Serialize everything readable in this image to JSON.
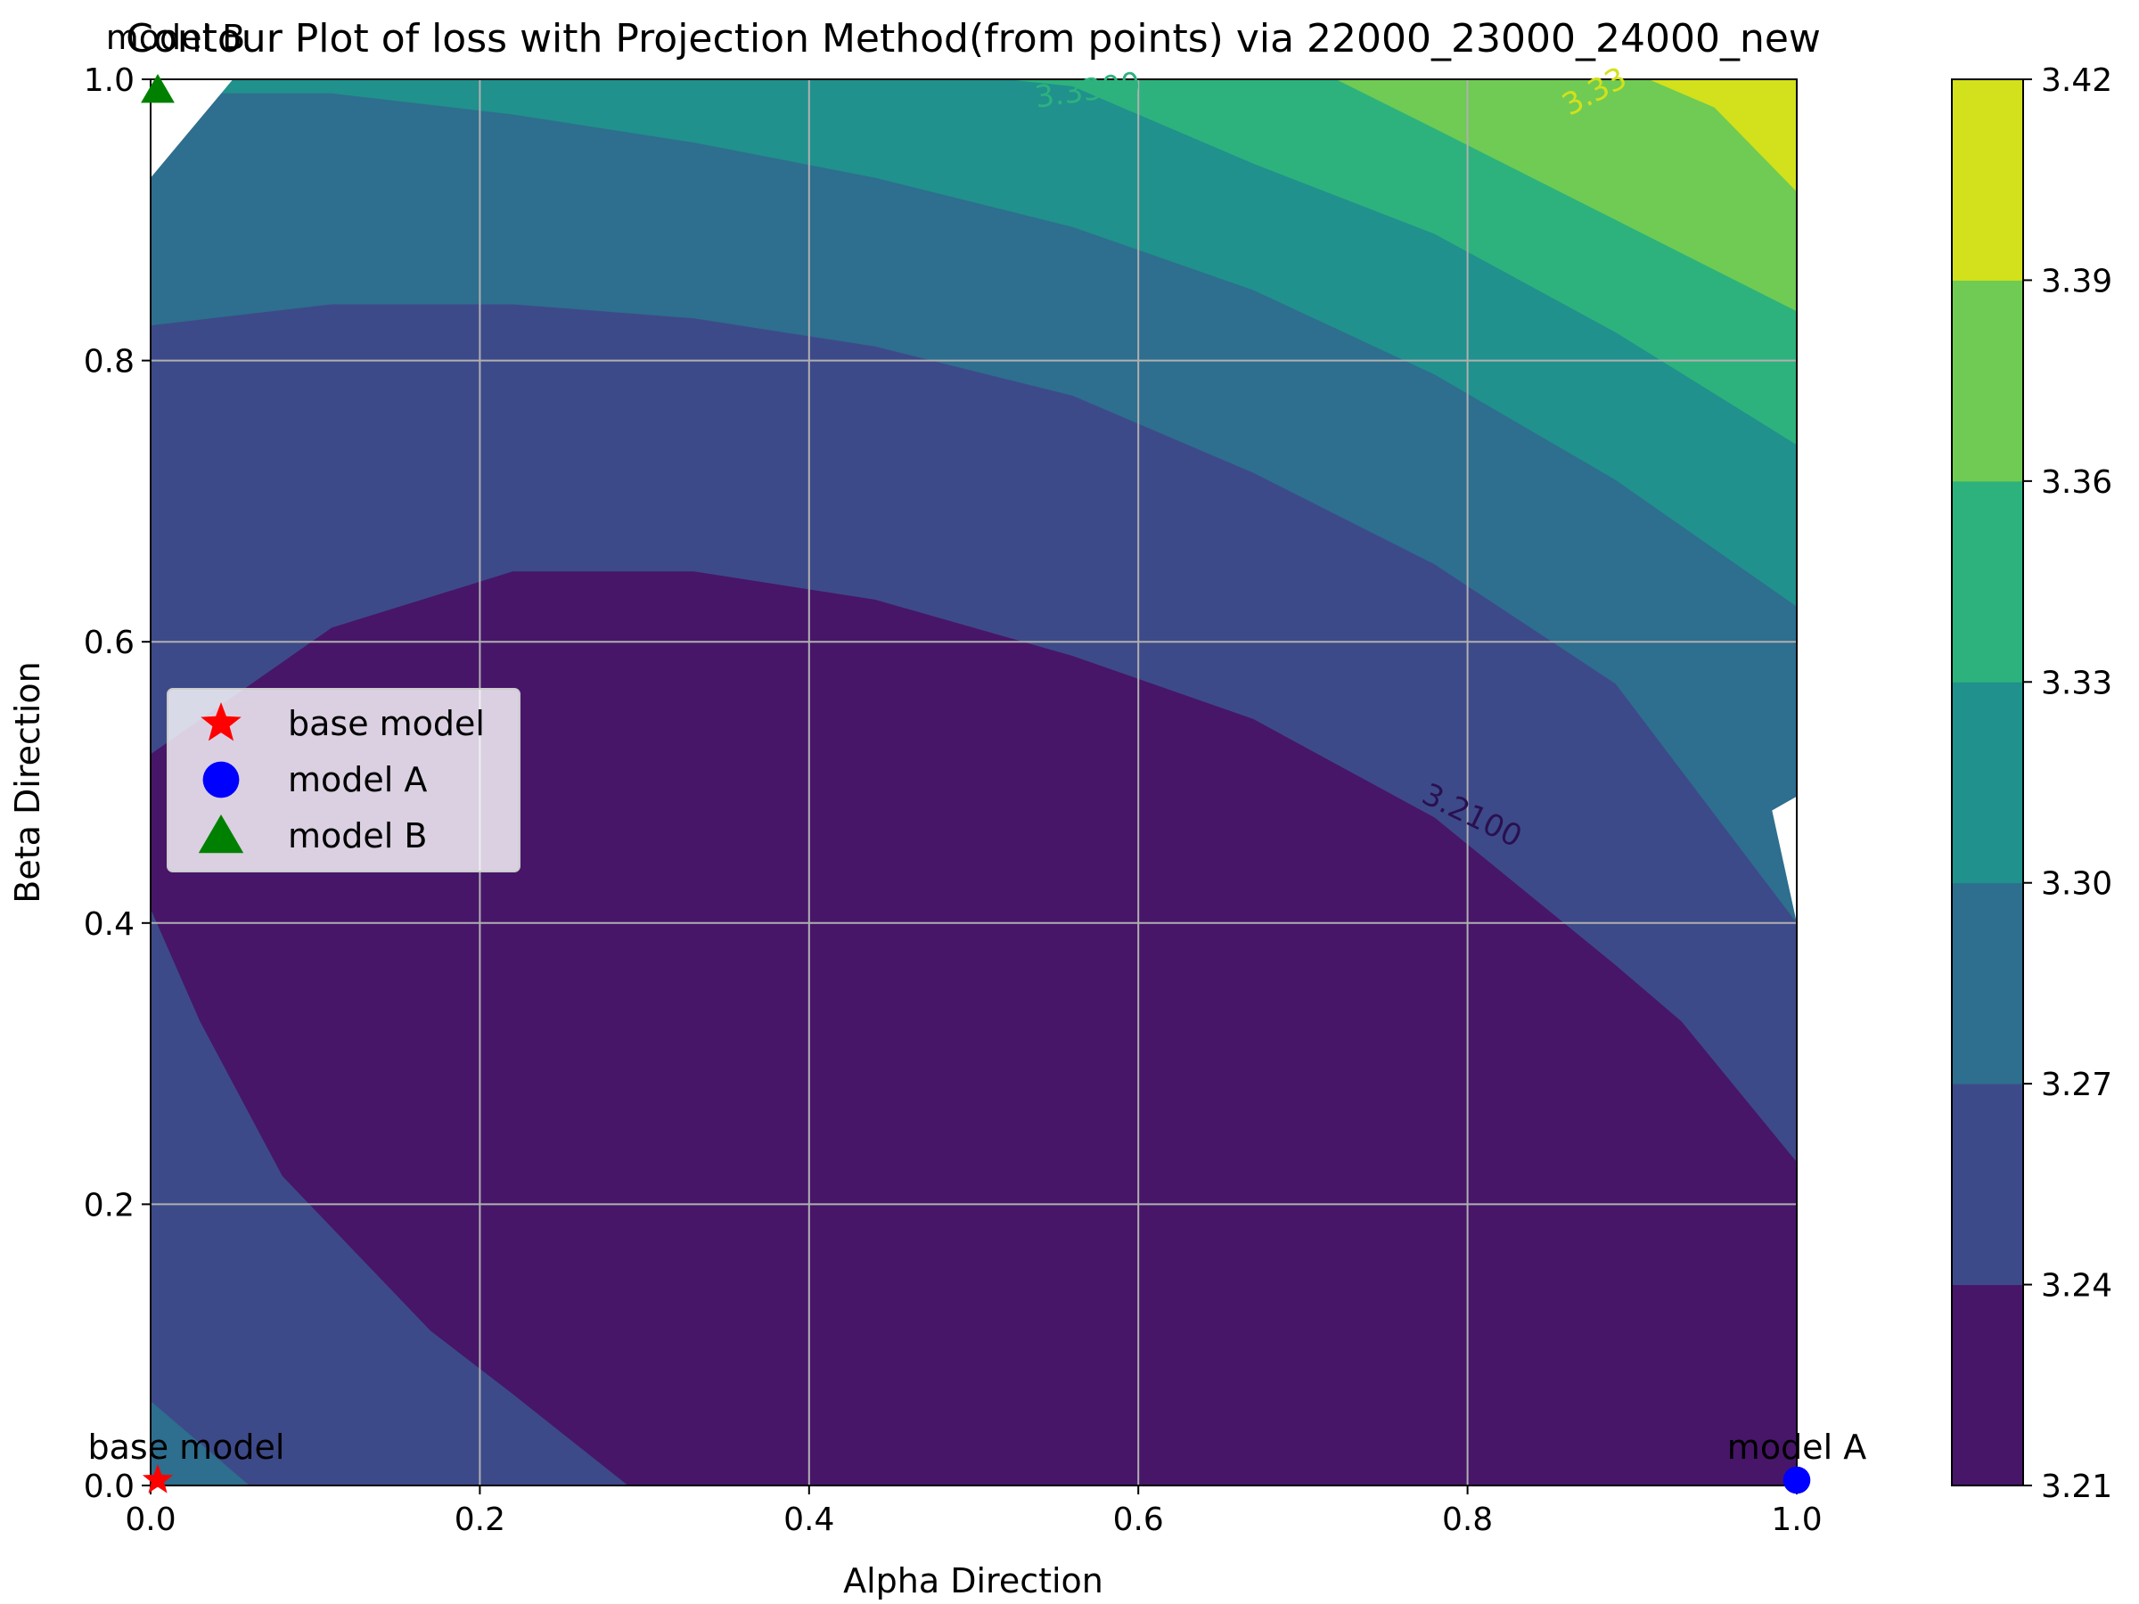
{
  "chart_data": {
    "type": "contour",
    "title": "Contour Plot of loss with Projection Method(from points) via 22000_23000_24000_new",
    "xlabel": "Alpha Direction",
    "ylabel": "Beta Direction",
    "xlim": [
      0.0,
      1.0
    ],
    "ylim": [
      0.0,
      1.0
    ],
    "x_ticks": [
      "0.0",
      "0.2",
      "0.4",
      "0.6",
      "0.8",
      "1.0"
    ],
    "y_ticks": [
      "0.0",
      "0.2",
      "0.4",
      "0.6",
      "0.8",
      "1.0"
    ],
    "grid": true,
    "levels": [
      3.21,
      3.24,
      3.27,
      3.3,
      3.33,
      3.36,
      3.39,
      3.42
    ],
    "colorbar_ticks": [
      "3.21",
      "3.24",
      "3.27",
      "3.30",
      "3.33",
      "3.36",
      "3.39",
      "3.42"
    ],
    "band_colors": [
      "#471669",
      "#3d4a89",
      "#2e6e8e",
      "#20918c",
      "#2db27d",
      "#6fcb53",
      "#d2e11b"
    ],
    "band_boundaries": [
      {
        "level": "3.24",
        "points": [
          [
            0.0,
            0.41
          ],
          [
            0.03,
            0.33
          ],
          [
            0.08,
            0.22
          ],
          [
            0.17,
            0.11
          ],
          [
            0.22,
            0.065
          ],
          [
            0.29,
            0.0
          ]
        ]
      },
      {
        "level": "3.24",
        "points": [
          [
            0.0,
            0.52
          ],
          [
            0.11,
            0.61
          ],
          [
            0.22,
            0.65
          ],
          [
            0.33,
            0.65
          ],
          [
            0.44,
            0.63
          ],
          [
            0.56,
            0.59
          ],
          [
            0.67,
            0.545
          ],
          [
            0.78,
            0.475
          ],
          [
            0.89,
            0.37
          ],
          [
            0.93,
            0.33
          ],
          [
            1.0,
            0.23
          ]
        ]
      },
      {
        "level": "3.27",
        "points": [
          [
            0.0,
            0.825
          ],
          [
            0.11,
            0.84
          ],
          [
            0.22,
            0.84
          ],
          [
            0.33,
            0.83
          ],
          [
            0.44,
            0.81
          ],
          [
            0.56,
            0.775
          ],
          [
            0.67,
            0.72
          ],
          [
            0.78,
            0.655
          ],
          [
            0.89,
            0.57
          ],
          [
            1.0,
            0.4
          ]
        ]
      },
      {
        "level": "3.30",
        "points": [
          [
            0.0,
            0.99
          ],
          [
            0.11,
            0.99
          ],
          [
            0.22,
            0.975
          ],
          [
            0.33,
            0.955
          ],
          [
            0.44,
            0.93
          ],
          [
            0.56,
            0.895
          ],
          [
            0.67,
            0.85
          ],
          [
            0.78,
            0.79
          ],
          [
            0.89,
            0.715
          ],
          [
            1.0,
            0.625
          ]
        ]
      },
      {
        "level": "3.33",
        "points": [
          [
            0.52,
            1.0
          ],
          [
            0.56,
            0.995
          ],
          [
            0.67,
            0.94
          ],
          [
            0.78,
            0.89
          ],
          [
            0.89,
            0.82
          ],
          [
            1.0,
            0.74
          ]
        ]
      },
      {
        "level": "3.36",
        "points": [
          [
            0.72,
            1.0
          ],
          [
            0.78,
            0.965
          ],
          [
            0.89,
            0.9
          ],
          [
            1.0,
            0.835
          ]
        ]
      },
      {
        "level": "3.39",
        "points": [
          [
            0.91,
            1.0
          ],
          [
            0.95,
            0.98
          ],
          [
            1.0,
            0.92
          ]
        ]
      }
    ],
    "corner_region_near_base": {
      "band": "3.27",
      "points": [
        [
          0.0,
          0.06
        ],
        [
          0.06,
          0.0
        ]
      ]
    },
    "contour_labels": [
      "3.2100",
      "3.33",
      "3.3300"
    ],
    "markers": [
      {
        "name": "base model",
        "x": 0.0,
        "y": 0.0,
        "shape": "star",
        "color": "#ff0000"
      },
      {
        "name": "model A",
        "x": 1.0,
        "y": 0.0,
        "shape": "circle",
        "color": "#0000ff"
      },
      {
        "name": "model B",
        "x": 0.0,
        "y": 1.0,
        "shape": "triangle",
        "color": "#008000"
      }
    ],
    "legend": {
      "placement": "center-left",
      "entries": [
        "base model",
        "model A",
        "model B"
      ]
    }
  }
}
